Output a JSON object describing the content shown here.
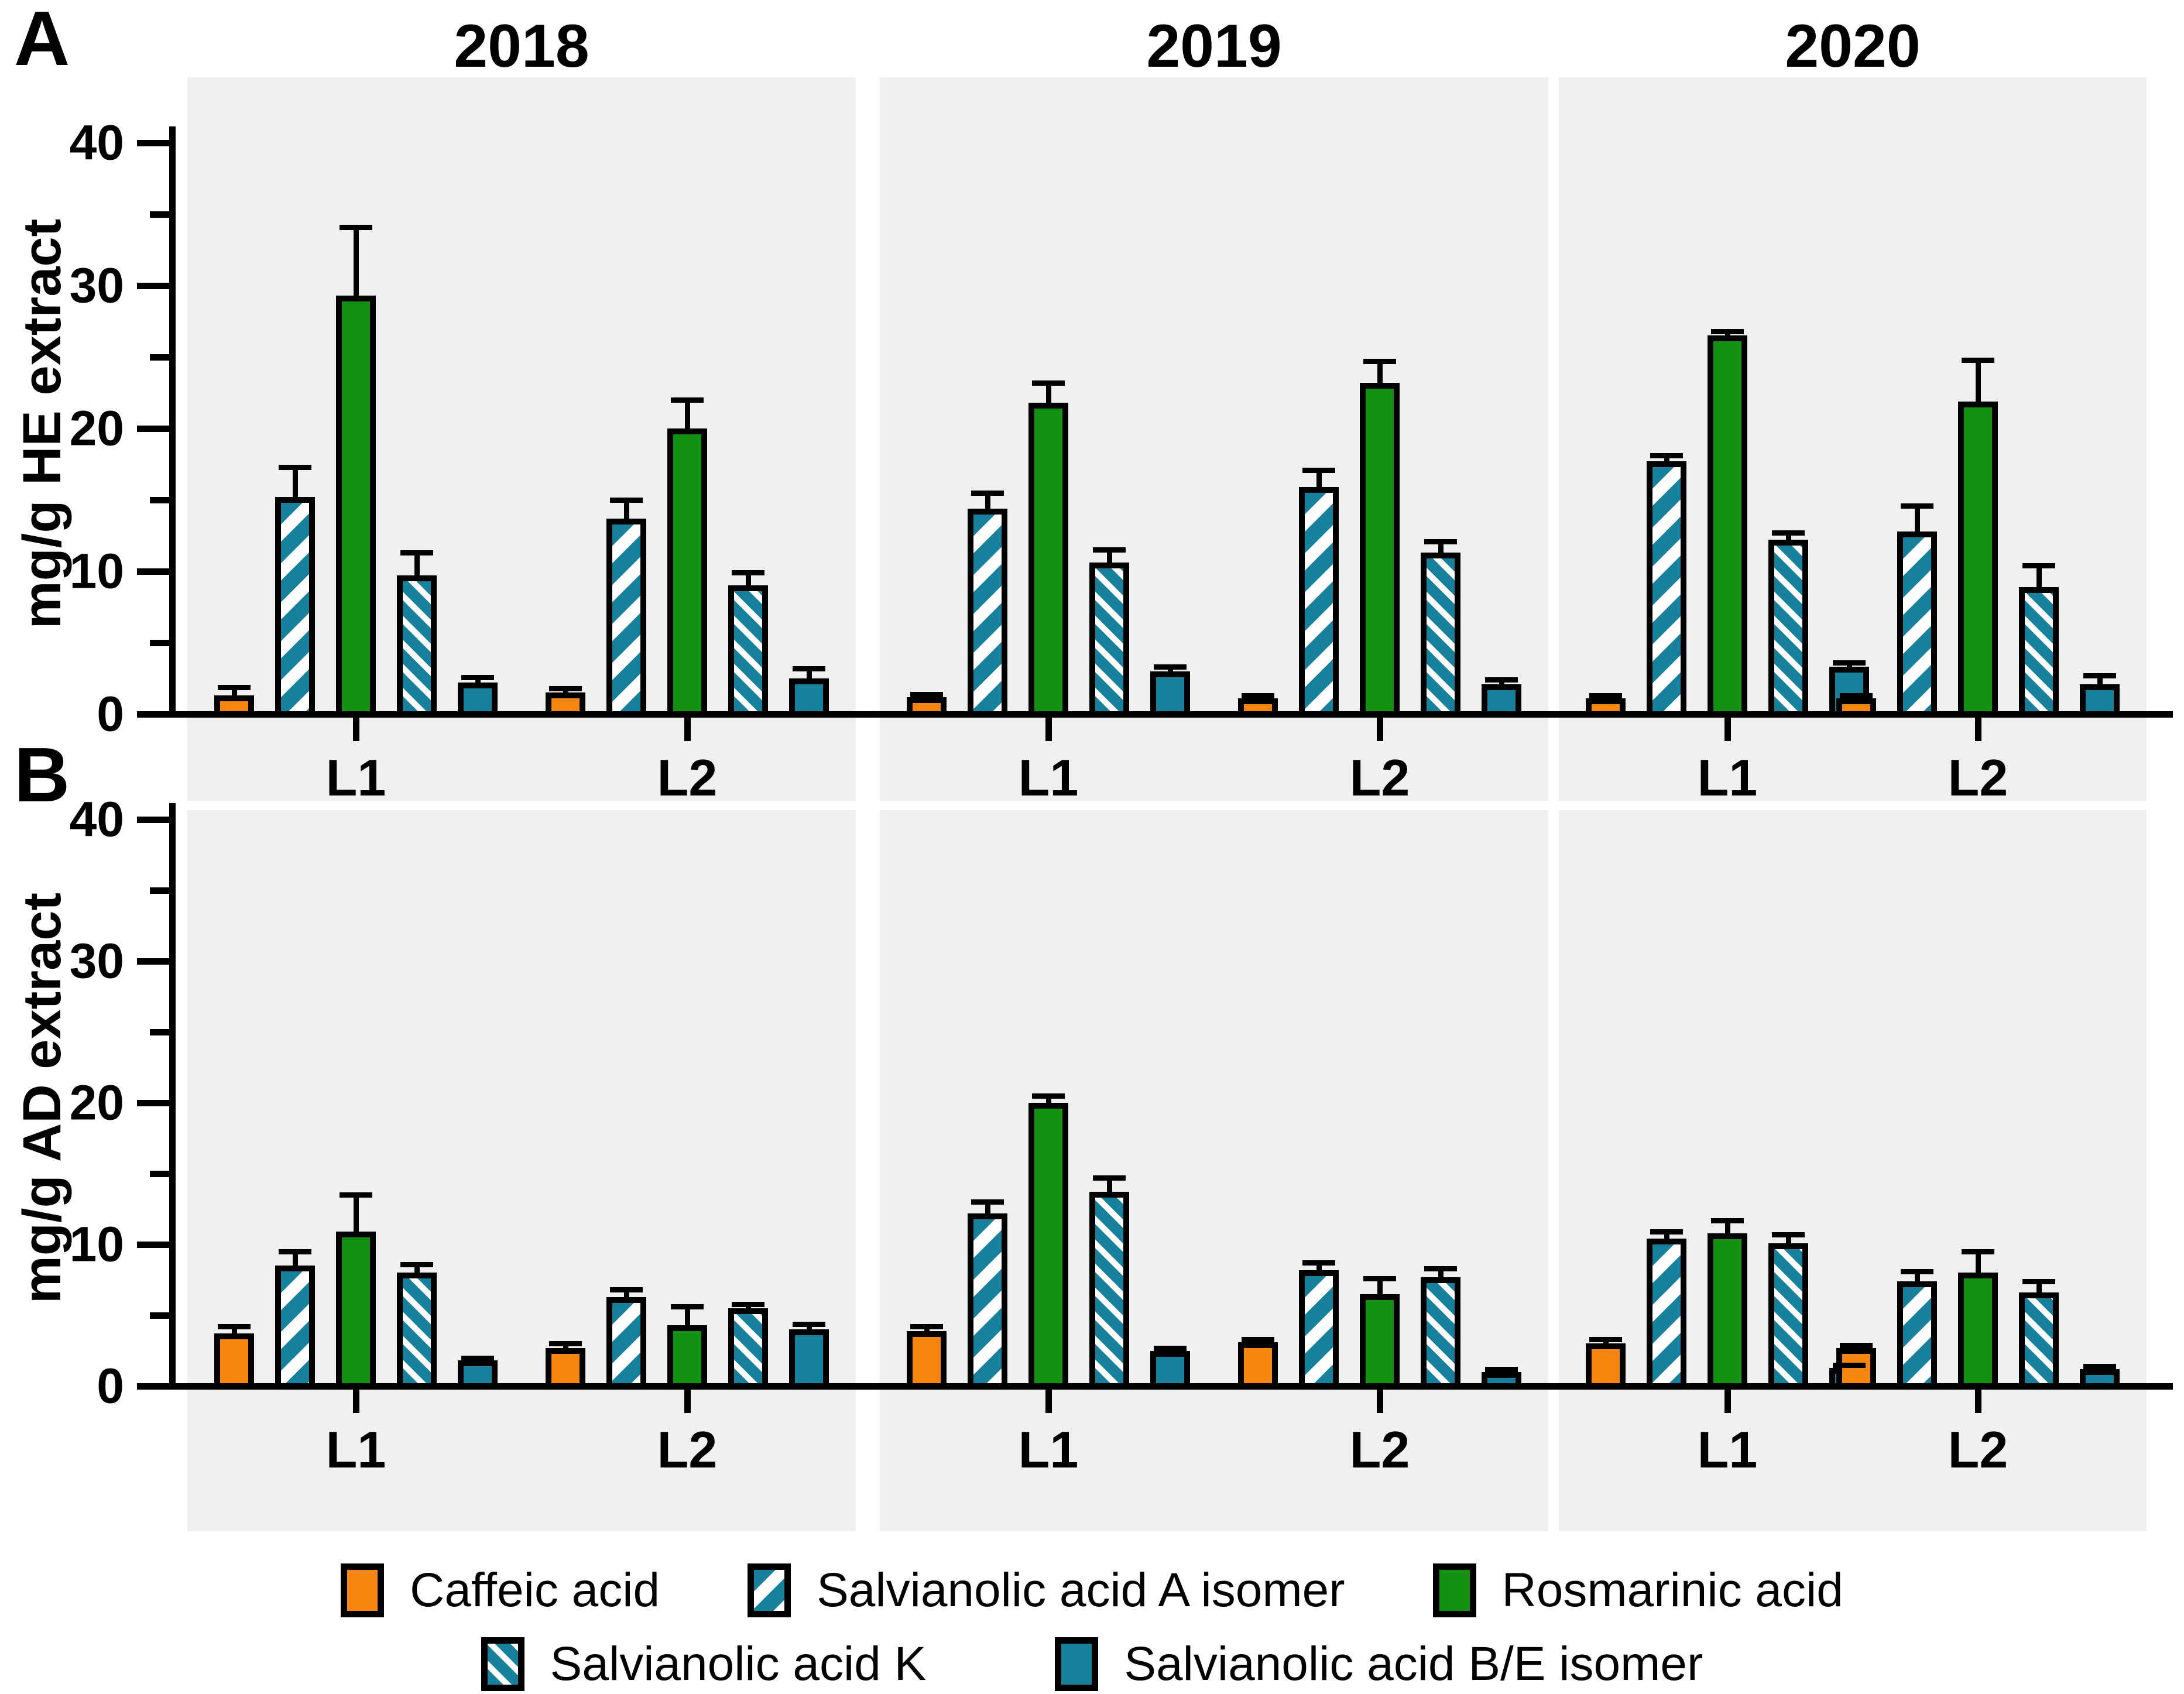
{
  "chart_data": {
    "type": "bar",
    "title": "",
    "legend_position": "bottom",
    "grid": false,
    "ylim": [
      0,
      43
    ],
    "y_major_ticks": [
      0,
      10,
      20,
      30,
      40
    ],
    "y_minor_ticks": [
      5,
      15,
      25,
      35
    ],
    "years": [
      "2018",
      "2019",
      "2020"
    ],
    "locations": [
      "L1",
      "L2"
    ],
    "series": [
      {
        "name": "Caffeic acid",
        "fill": "#F6860F",
        "pattern": "solid"
      },
      {
        "name": "Salvianolic acid A isomer",
        "fill": "#17809C",
        "pattern": "diag-up-stripes"
      },
      {
        "name": "Rosmarinic acid",
        "fill": "#129112",
        "pattern": "solid"
      },
      {
        "name": "Salvianolic acid K",
        "fill": "#17809C",
        "pattern": "diag-down-stripes"
      },
      {
        "name": "Salvianolic acid B/E isomer",
        "fill": "#17809C",
        "pattern": "solid"
      }
    ],
    "panels": [
      {
        "label": "A",
        "ylabel": "mg/g HE extract",
        "years": [
          {
            "year": "2018",
            "groups": [
              {
                "label": "L1",
                "values": [
                  1.3,
                  15.2,
                  29.3,
                  9.7,
                  2.2
                ],
                "errors": [
                  0.6,
                  2.1,
                  4.8,
                  1.6,
                  0.4
                ]
              },
              {
                "label": "L2",
                "values": [
                  1.5,
                  13.7,
                  20.0,
                  9.0,
                  2.5
                ],
                "errors": [
                  0.3,
                  1.3,
                  2.0,
                  0.9,
                  0.7
                ]
              }
            ]
          },
          {
            "year": "2019",
            "groups": [
              {
                "label": "L1",
                "values": [
                  1.2,
                  14.4,
                  21.8,
                  10.6,
                  3.0
                ],
                "errors": [
                  0.2,
                  1.1,
                  1.4,
                  0.9,
                  0.3
                ]
              },
              {
                "label": "L2",
                "values": [
                  1.1,
                  15.9,
                  23.2,
                  11.3,
                  2.1
                ],
                "errors": [
                  0.2,
                  1.2,
                  1.5,
                  0.8,
                  0.3
                ]
              }
            ]
          },
          {
            "year": "2020",
            "groups": [
              {
                "label": "L1",
                "values": [
                  1.1,
                  17.7,
                  26.5,
                  12.2,
                  3.3
                ],
                "errors": [
                  0.2,
                  0.4,
                  0.3,
                  0.5,
                  0.3
                ]
              },
              {
                "label": "L2",
                "values": [
                  1.1,
                  12.8,
                  21.9,
                  8.9,
                  2.1
                ],
                "errors": [
                  0.2,
                  1.8,
                  2.9,
                  1.5,
                  0.6
                ]
              }
            ]
          }
        ]
      },
      {
        "label": "B",
        "ylabel": "mg/g AD extract",
        "years": [
          {
            "year": "2018",
            "groups": [
              {
                "label": "L1",
                "values": [
                  3.7,
                  8.5,
                  10.9,
                  8.0,
                  1.8
                ],
                "errors": [
                  0.5,
                  1.0,
                  2.6,
                  0.6,
                  0.2
                ]
              },
              {
                "label": "L2",
                "values": [
                  2.7,
                  6.3,
                  4.3,
                  5.5,
                  4.0
                ],
                "errors": [
                  0.3,
                  0.5,
                  1.3,
                  0.3,
                  0.4
                ]
              }
            ]
          },
          {
            "year": "2019",
            "groups": [
              {
                "label": "L1",
                "values": [
                  3.9,
                  12.2,
                  20.0,
                  13.7,
                  2.5
                ],
                "errors": [
                  0.3,
                  0.8,
                  0.5,
                  1.0,
                  0.2
                ]
              },
              {
                "label": "L2",
                "values": [
                  3.1,
                  8.2,
                  6.5,
                  7.7,
                  1.0
                ],
                "errors": [
                  0.2,
                  0.5,
                  1.1,
                  0.6,
                  0.2
                ]
              }
            ]
          },
          {
            "year": "2020",
            "groups": [
              {
                "label": "L1",
                "values": [
                  3.0,
                  10.4,
                  10.8,
                  10.1,
                  1.3
                ],
                "errors": [
                  0.3,
                  0.5,
                  0.9,
                  0.6,
                  0.2
                ]
              },
              {
                "label": "L2",
                "values": [
                  2.7,
                  7.4,
                  8.0,
                  6.6,
                  1.2
                ],
                "errors": [
                  0.2,
                  0.7,
                  1.5,
                  0.8,
                  0.2
                ]
              }
            ]
          }
        ]
      }
    ],
    "legend_rows": [
      [
        "Caffeic acid",
        "Salvianolic acid A isomer",
        "Rosmarinic acid"
      ],
      [
        "Salvianolic acid K",
        "Salvianolic acid B/E isomer"
      ]
    ]
  }
}
